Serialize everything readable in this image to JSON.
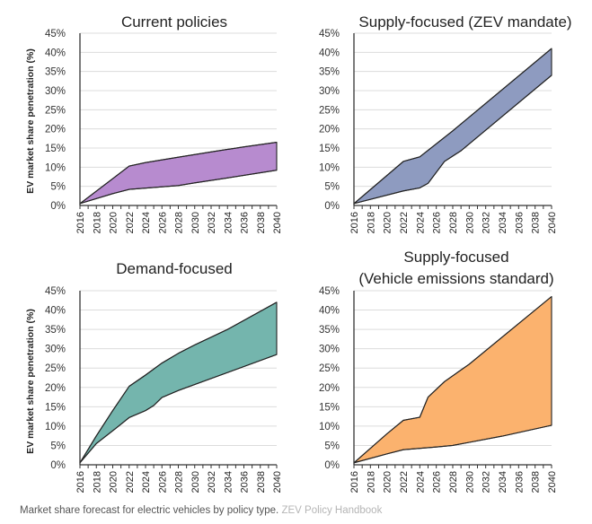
{
  "caption": {
    "text": "Market share forecast for electric vehicles by policy type.",
    "source": "ZEV Policy Handbook"
  },
  "chart_data": [
    {
      "type": "area",
      "id": "current",
      "title": [
        "Current policies"
      ],
      "ylabel": "EV market share penetration (%)",
      "xlabel": "",
      "ylim": [
        0,
        45
      ],
      "yticks": [
        "0%",
        "5%",
        "10%",
        "15%",
        "20%",
        "25%",
        "30%",
        "35%",
        "40%",
        "45%"
      ],
      "xlim": [
        2016,
        2040
      ],
      "xticks": [
        "2016",
        "2018",
        "2020",
        "2022",
        "2024",
        "2026",
        "2028",
        "2030",
        "2032",
        "2034",
        "2036",
        "2038",
        "2040"
      ],
      "grid": true,
      "fill": "#b78bcf",
      "series": [
        {
          "name": "upper",
          "x": [
            2016,
            2022,
            2024,
            2028,
            2032,
            2036,
            2040
          ],
          "values": [
            0.5,
            10.3,
            11.2,
            12.6,
            14.0,
            15.3,
            16.5
          ]
        },
        {
          "name": "lower",
          "x": [
            2016,
            2020,
            2022,
            2028,
            2030,
            2034,
            2040
          ],
          "values": [
            0.5,
            3.1,
            4.2,
            5.2,
            5.9,
            7.2,
            9.2
          ]
        }
      ]
    },
    {
      "type": "area",
      "id": "zev",
      "title": [
        "Supply-focused (ZEV mandate)"
      ],
      "ylabel": "",
      "xlabel": "",
      "ylim": [
        0,
        45
      ],
      "yticks": [
        "0%",
        "5%",
        "10%",
        "15%",
        "20%",
        "25%",
        "30%",
        "35%",
        "40%",
        "45%"
      ],
      "xlim": [
        2016,
        2040
      ],
      "xticks": [
        "2016",
        "2018",
        "2020",
        "2022",
        "2024",
        "2026",
        "2028",
        "2030",
        "2032",
        "2034",
        "2036",
        "2038",
        "2040"
      ],
      "grid": true,
      "fill": "#8e9bc0",
      "series": [
        {
          "name": "upper",
          "x": [
            2016,
            2022,
            2024,
            2028,
            2040
          ],
          "values": [
            0.5,
            11.5,
            12.7,
            19.5,
            41.0
          ]
        },
        {
          "name": "lower",
          "x": [
            2016,
            2022,
            2024,
            2025,
            2027,
            2029,
            2040
          ],
          "values": [
            0.5,
            3.8,
            4.6,
            5.8,
            11.5,
            14.3,
            34.0
          ]
        }
      ]
    },
    {
      "type": "area",
      "id": "demand",
      "title": [
        "Demand-focused"
      ],
      "ylabel": "EV market share penetration (%)",
      "xlabel": "",
      "ylim": [
        0,
        45
      ],
      "yticks": [
        "0%",
        "5%",
        "10%",
        "15%",
        "20%",
        "25%",
        "30%",
        "35%",
        "40%",
        "45%"
      ],
      "xlim": [
        2016,
        2040
      ],
      "xticks": [
        "2016",
        "2018",
        "2020",
        "2022",
        "2024",
        "2026",
        "2028",
        "2030",
        "2032",
        "2034",
        "2036",
        "2038",
        "2040"
      ],
      "grid": true,
      "fill": "#74b5ad",
      "series": [
        {
          "name": "upper",
          "x": [
            2016,
            2018,
            2020,
            2022,
            2024,
            2026,
            2028,
            2030,
            2034,
            2040
          ],
          "values": [
            0.5,
            7.5,
            14.0,
            20.3,
            23.2,
            26.3,
            28.8,
            31.0,
            35.0,
            42.0
          ]
        },
        {
          "name": "lower",
          "x": [
            2016,
            2018,
            2020,
            2022,
            2024,
            2025,
            2026,
            2028,
            2032,
            2040
          ],
          "values": [
            0.5,
            5.5,
            8.8,
            12.2,
            14.0,
            15.3,
            17.4,
            19.2,
            22.3,
            28.5
          ]
        }
      ]
    },
    {
      "type": "area",
      "id": "emissions",
      "title": [
        "Supply-focused",
        "(Vehicle emissions standard)"
      ],
      "ylabel": "",
      "xlabel": "",
      "ylim": [
        0,
        45
      ],
      "yticks": [
        "0%",
        "5%",
        "10%",
        "15%",
        "20%",
        "25%",
        "30%",
        "35%",
        "40%",
        "45%"
      ],
      "xlim": [
        2016,
        2040
      ],
      "xticks": [
        "2016",
        "2018",
        "2020",
        "2022",
        "2024",
        "2026",
        "2028",
        "2030",
        "2032",
        "2034",
        "2036",
        "2038",
        "2040"
      ],
      "grid": true,
      "fill": "#fbb26e",
      "series": [
        {
          "name": "upper",
          "x": [
            2016,
            2020,
            2022,
            2024,
            2025,
            2027,
            2028,
            2030,
            2040
          ],
          "values": [
            0.5,
            8.0,
            11.5,
            12.3,
            17.5,
            21.5,
            23.0,
            26.0,
            43.5
          ]
        },
        {
          "name": "lower",
          "x": [
            2016,
            2020,
            2022,
            2026,
            2028,
            2030,
            2034,
            2040
          ],
          "values": [
            0.5,
            2.8,
            3.9,
            4.6,
            5.0,
            5.8,
            7.4,
            10.2
          ]
        }
      ]
    }
  ]
}
